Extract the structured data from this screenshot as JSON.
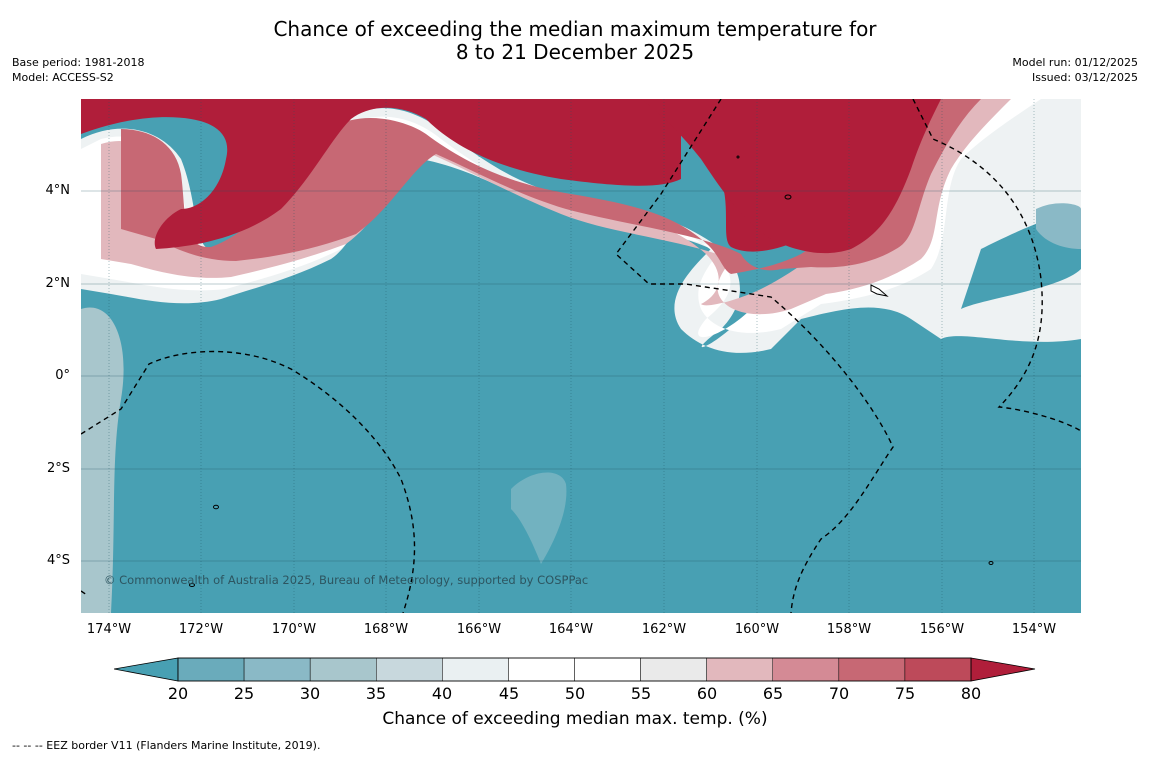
{
  "title": {
    "line1": "Chance of exceeding the median maximum temperature for",
    "line2": "8 to 21 December 2025"
  },
  "meta_left": {
    "base_period": "Base period: 1981-2018",
    "model": "Model: ACCESS-S2"
  },
  "meta_right": {
    "model_run": "Model run: 01/12/2025",
    "issued": "Issued: 03/12/2025"
  },
  "map": {
    "copyright": "© Commonwealth of Australia 2025, Bureau of Meteorology, supported by COSPPac",
    "lat_labels": [
      "4°N",
      "2°N",
      "0°",
      "2°S",
      "4°S"
    ],
    "lon_labels": [
      "174°W",
      "172°W",
      "170°W",
      "168°W",
      "166°W",
      "164°W",
      "162°W",
      "160°W",
      "158°W",
      "156°W",
      "154°W"
    ],
    "colors": {
      "below_20": "#48a0b3",
      "above_80": "#b01e3a"
    }
  },
  "colorbar": {
    "title": "Chance of exceeding median max. temp. (%)",
    "ticks": [
      "20",
      "25",
      "30",
      "35",
      "40",
      "45",
      "50",
      "55",
      "60",
      "65",
      "70",
      "75",
      "80"
    ],
    "bins": [
      "#6aabbb",
      "#8ab9c6",
      "#a8c6cc",
      "#c8d8dd",
      "#eaf0f2",
      "#ffffff",
      "#ffffff",
      "#eaeaea",
      "#e2b8bd",
      "#d48a95",
      "#c76874",
      "#bd4a5a"
    ],
    "low_color": "#48a0b3",
    "high_color": "#b01e3a"
  },
  "footnote": "--  --  -- EEZ border V11 (Flanders Marine Institute, 2019)."
}
